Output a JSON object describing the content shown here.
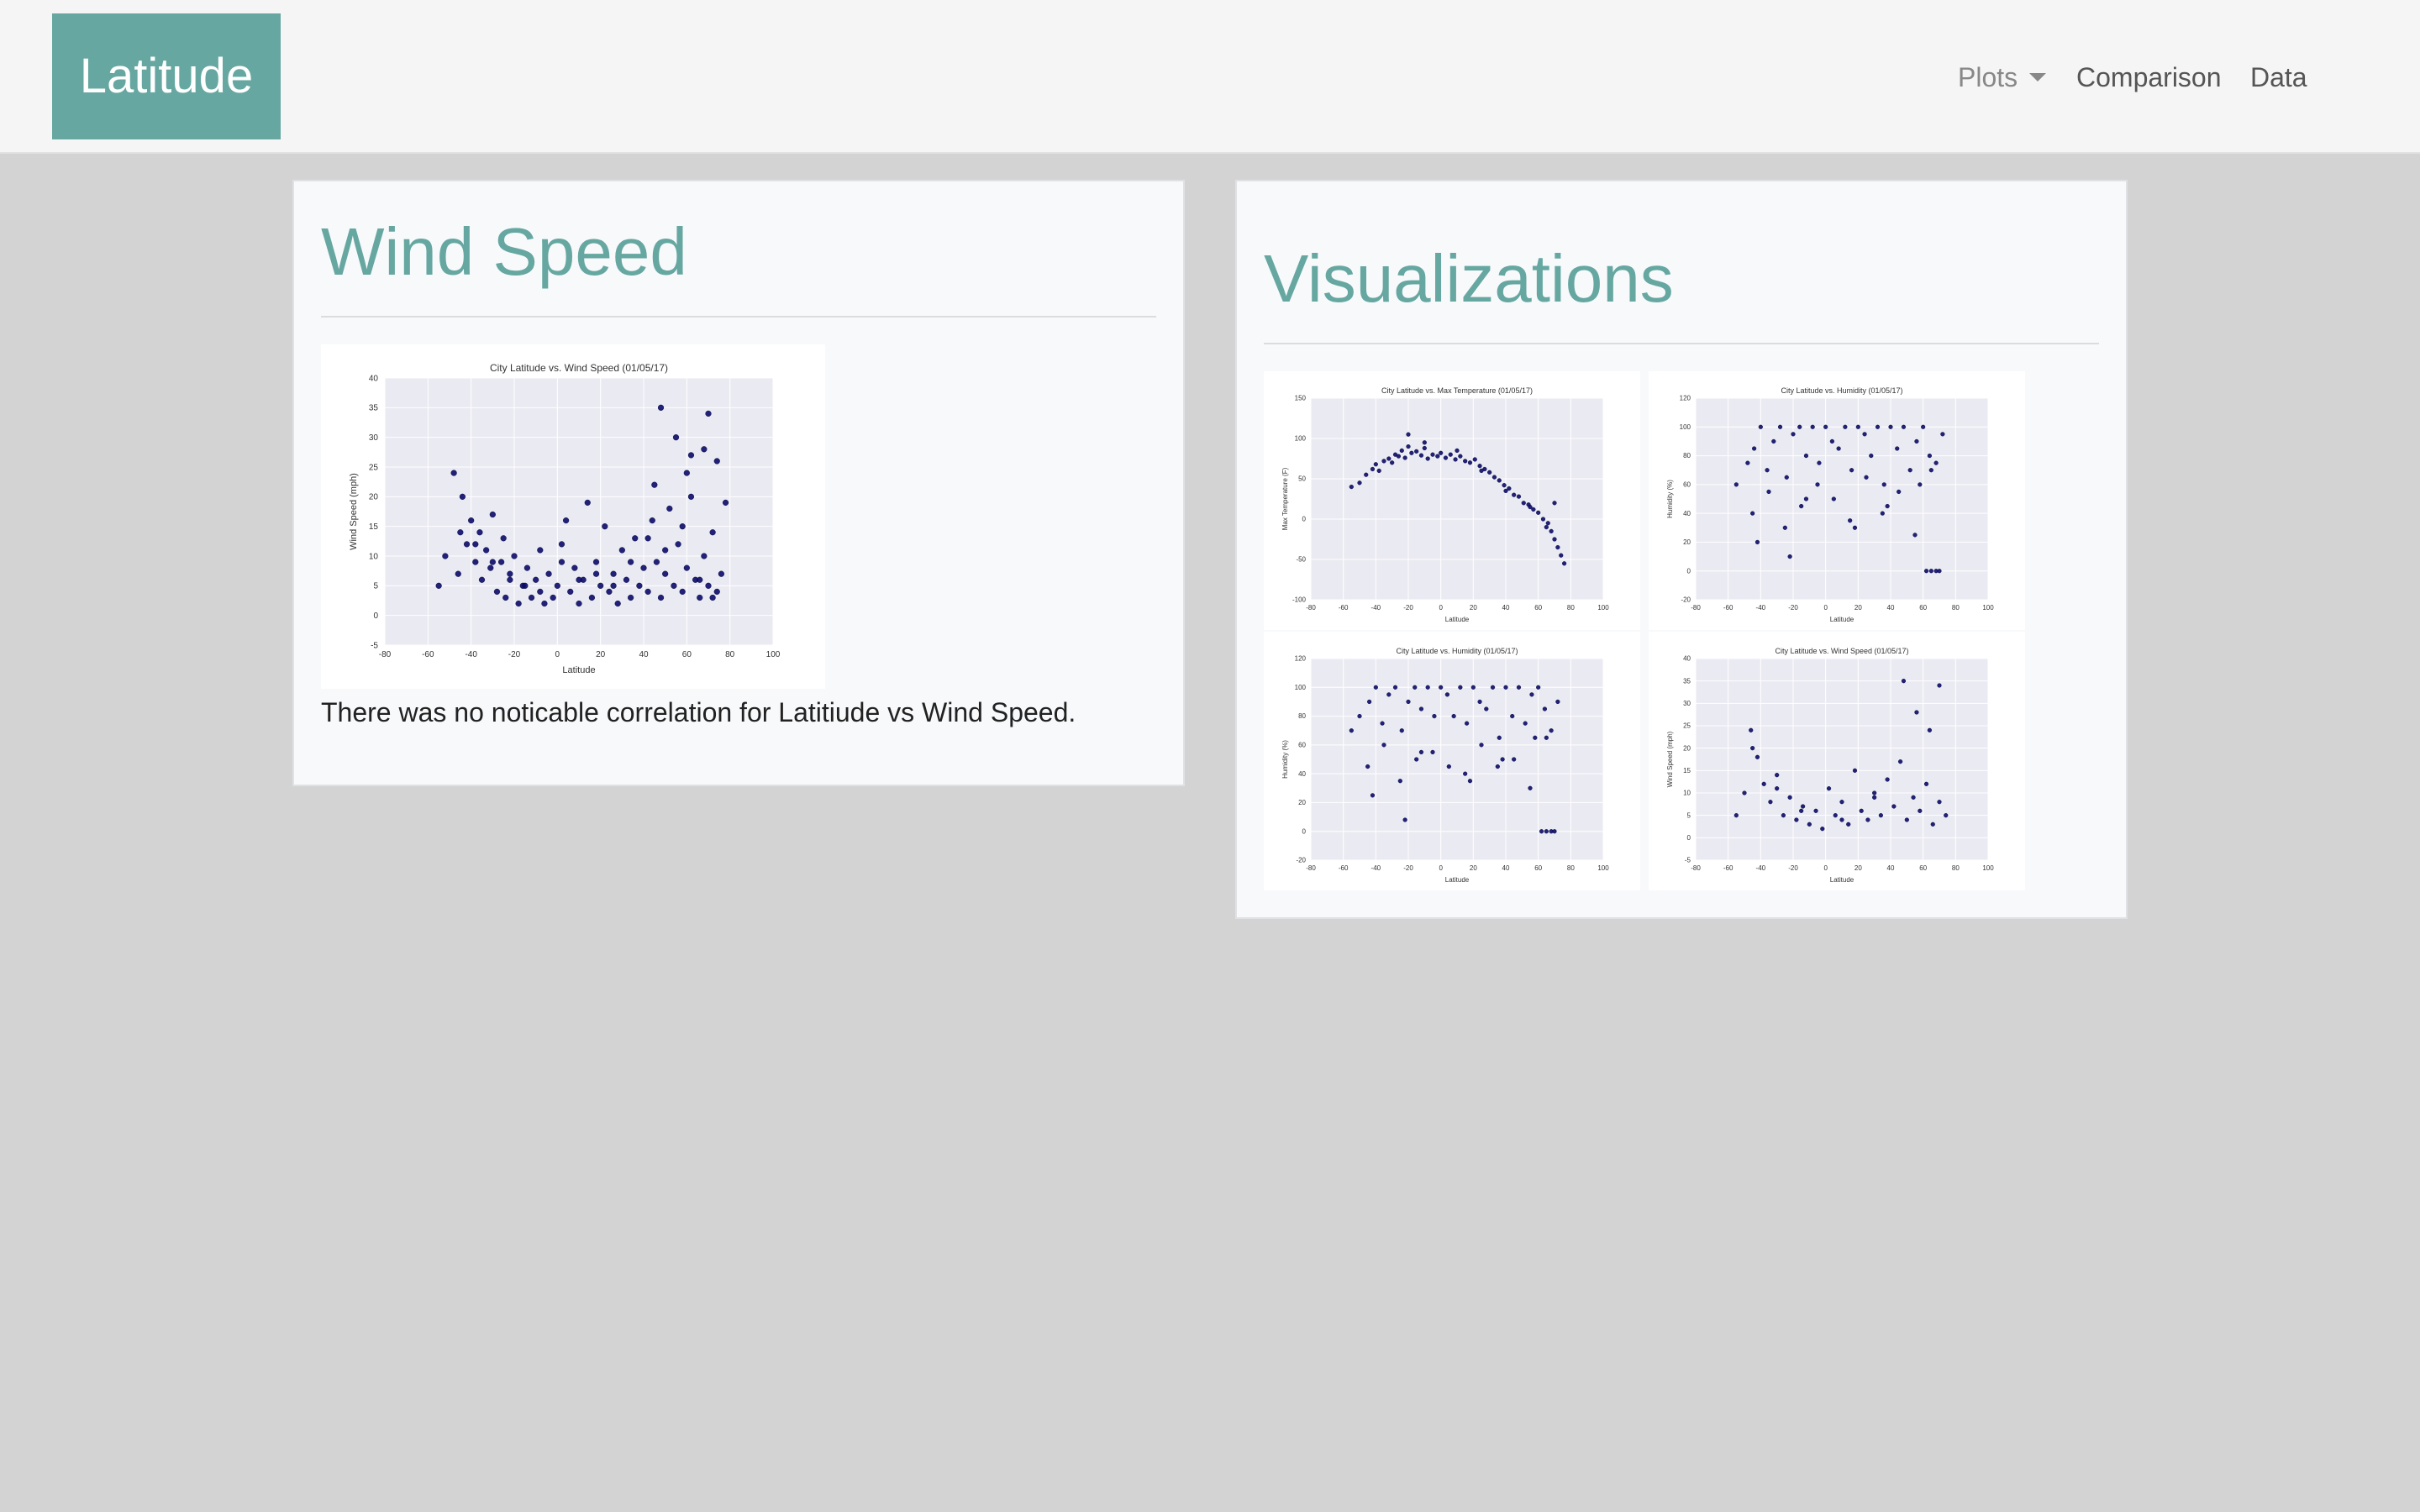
{
  "navbar": {
    "brand": "Latitude",
    "links": {
      "plots": "Plots",
      "comparison": "Comparison",
      "data": "Data"
    }
  },
  "wind_card": {
    "title": "Wind Speed",
    "description": "There was no noticable correlation for Latitiude vs Wind Speed."
  },
  "viz_card": {
    "title": "Visualizations"
  },
  "colors": {
    "accent": "#66a8a1",
    "page_bg": "#d3d3d3",
    "plot_bg": "#eaeaf2",
    "marker": "#0b0b6b"
  },
  "chart_data": [
    {
      "id": "wind-main",
      "type": "scatter",
      "title": "City Latitude vs. Wind Speed (01/05/17)",
      "xlabel": "Latitude",
      "ylabel": "Wind Speed (mph)",
      "xlim": [
        -80,
        100
      ],
      "ylim": [
        -5,
        40
      ],
      "xticks": [
        -80,
        -60,
        -40,
        -20,
        0,
        20,
        40,
        60,
        80,
        100
      ],
      "yticks": [
        -5,
        0,
        5,
        10,
        15,
        20,
        25,
        30,
        35,
        40
      ],
      "x": [
        -55,
        -52,
        -48,
        -46,
        -44,
        -42,
        -40,
        -38,
        -36,
        -35,
        -33,
        -31,
        -30,
        -28,
        -26,
        -25,
        -24,
        -22,
        -20,
        -18,
        -16,
        -14,
        -12,
        -10,
        -8,
        -6,
        -4,
        -2,
        0,
        2,
        4,
        6,
        8,
        10,
        12,
        14,
        16,
        18,
        20,
        22,
        24,
        26,
        28,
        30,
        32,
        34,
        36,
        38,
        40,
        42,
        44,
        46,
        48,
        50,
        52,
        54,
        56,
        58,
        60,
        62,
        64,
        66,
        68,
        70,
        72,
        74,
        76,
        78,
        -45,
        -38,
        -30,
        -22,
        -15,
        -8,
        2,
        10,
        18,
        26,
        34,
        42,
        50,
        58,
        66,
        72,
        48,
        55,
        62,
        70,
        45,
        60,
        68,
        74
      ],
      "y": [
        5,
        10,
        24,
        7,
        20,
        12,
        16,
        9,
        14,
        6,
        11,
        8,
        17,
        4,
        9,
        13,
        3,
        6,
        10,
        2,
        5,
        8,
        3,
        6,
        4,
        2,
        7,
        3,
        5,
        12,
        16,
        4,
        8,
        2,
        6,
        19,
        3,
        9,
        5,
        15,
        4,
        7,
        2,
        11,
        6,
        3,
        13,
        5,
        8,
        4,
        16,
        9,
        3,
        7,
        18,
        5,
        12,
        4,
        8,
        20,
        6,
        3,
        10,
        5,
        14,
        4,
        7,
        19,
        14,
        12,
        9,
        7,
        5,
        11,
        9,
        6,
        7,
        5,
        9,
        13,
        11,
        15,
        6,
        3,
        35,
        30,
        27,
        34,
        22,
        24,
        28,
        26
      ]
    },
    {
      "id": "temp-thumb",
      "type": "scatter",
      "title": "City Latitude vs. Max Temperature (01/05/17)",
      "xlabel": "Latitude",
      "ylabel": "Max Temperature (F)",
      "xlim": [
        -80,
        100
      ],
      "ylim": [
        -100,
        150
      ],
      "xticks": [
        -80,
        -60,
        -40,
        -20,
        0,
        20,
        40,
        60,
        80,
        100
      ],
      "yticks": [
        -100,
        -50,
        0,
        50,
        100,
        150
      ],
      "x": [
        -55,
        -50,
        -46,
        -42,
        -40,
        -38,
        -35,
        -32,
        -30,
        -28,
        -26,
        -24,
        -22,
        -20,
        -18,
        -15,
        -12,
        -10,
        -8,
        -5,
        -2,
        0,
        3,
        6,
        9,
        12,
        15,
        18,
        21,
        24,
        27,
        30,
        33,
        36,
        39,
        42,
        45,
        48,
        51,
        54,
        57,
        60,
        63,
        66,
        68,
        70,
        72,
        74,
        76,
        -20,
        -10,
        10,
        25,
        40,
        55,
        65,
        70
      ],
      "y": [
        40,
        45,
        55,
        62,
        68,
        60,
        72,
        75,
        70,
        80,
        78,
        85,
        76,
        90,
        82,
        84,
        79,
        88,
        75,
        80,
        78,
        82,
        76,
        80,
        74,
        78,
        72,
        70,
        74,
        66,
        62,
        58,
        52,
        48,
        42,
        38,
        30,
        28,
        20,
        18,
        12,
        8,
        0,
        -5,
        -15,
        -25,
        -35,
        -45,
        -55,
        105,
        95,
        85,
        60,
        35,
        15,
        -10,
        20
      ]
    },
    {
      "id": "humidity-thumb-1",
      "type": "scatter",
      "title": "City Latitude vs. Humidity (01/05/17)",
      "xlabel": "Latitude",
      "ylabel": "Humidity (%)",
      "xlim": [
        -80,
        100
      ],
      "ylim": [
        -20,
        120
      ],
      "xticks": [
        -80,
        -60,
        -40,
        -20,
        0,
        20,
        40,
        60,
        80,
        100
      ],
      "yticks": [
        -20,
        0,
        20,
        40,
        60,
        80,
        100,
        120
      ],
      "x": [
        -55,
        -48,
        -44,
        -40,
        -36,
        -32,
        -28,
        -24,
        -20,
        -16,
        -12,
        -8,
        -4,
        0,
        4,
        8,
        12,
        16,
        20,
        24,
        28,
        32,
        36,
        40,
        44,
        48,
        52,
        56,
        60,
        64,
        68,
        72,
        -45,
        -35,
        -25,
        -15,
        -5,
        5,
        15,
        25,
        35,
        45,
        55,
        65,
        -42,
        -22,
        -12,
        18,
        38,
        58,
        62,
        65,
        68,
        70
      ],
      "y": [
        60,
        75,
        85,
        100,
        70,
        90,
        100,
        65,
        95,
        100,
        80,
        100,
        75,
        100,
        90,
        85,
        100,
        70,
        100,
        95,
        80,
        100,
        60,
        100,
        85,
        100,
        70,
        90,
        100,
        80,
        75,
        95,
        40,
        55,
        30,
        45,
        60,
        50,
        35,
        65,
        40,
        55,
        25,
        70,
        20,
        10,
        50,
        30,
        45,
        60,
        0,
        0,
        0,
        0
      ]
    },
    {
      "id": "humidity-thumb-2",
      "type": "scatter",
      "title": "City Latitude vs. Humidity (01/05/17)",
      "xlabel": "Latitude",
      "ylabel": "Humidity (%)",
      "xlim": [
        -80,
        100
      ],
      "ylim": [
        -20,
        120
      ],
      "xticks": [
        -80,
        -60,
        -40,
        -20,
        0,
        20,
        40,
        60,
        80,
        100
      ],
      "yticks": [
        -20,
        0,
        20,
        40,
        60,
        80,
        100,
        120
      ],
      "x": [
        -55,
        -50,
        -44,
        -40,
        -36,
        -32,
        -28,
        -24,
        -20,
        -16,
        -12,
        -8,
        -4,
        0,
        4,
        8,
        12,
        16,
        20,
        24,
        28,
        32,
        36,
        40,
        44,
        48,
        52,
        56,
        60,
        64,
        68,
        72,
        -45,
        -35,
        -25,
        -15,
        -5,
        5,
        15,
        25,
        35,
        45,
        55,
        65,
        -42,
        -22,
        -12,
        18,
        38,
        58,
        62,
        65,
        68,
        70
      ],
      "y": [
        70,
        80,
        90,
        100,
        75,
        95,
        100,
        70,
        90,
        100,
        85,
        100,
        80,
        100,
        95,
        80,
        100,
        75,
        100,
        90,
        85,
        100,
        65,
        100,
        80,
        100,
        75,
        95,
        100,
        85,
        70,
        90,
        45,
        60,
        35,
        50,
        55,
        45,
        40,
        60,
        45,
        50,
        30,
        65,
        25,
        8,
        55,
        35,
        50,
        65,
        0,
        0,
        0,
        0
      ]
    },
    {
      "id": "wind-thumb",
      "type": "scatter",
      "title": "City Latitude vs. Wind Speed (01/05/17)",
      "xlabel": "Latitude",
      "ylabel": "Wind Speed (mph)",
      "xlim": [
        -80,
        100
      ],
      "ylim": [
        -5,
        40
      ],
      "xticks": [
        -80,
        -60,
        -40,
        -20,
        0,
        20,
        40,
        60,
        80,
        100
      ],
      "yticks": [
        -5,
        0,
        5,
        10,
        15,
        20,
        25,
        30,
        35,
        40
      ],
      "x": [
        -55,
        -50,
        -46,
        -42,
        -38,
        -34,
        -30,
        -26,
        -22,
        -18,
        -14,
        -10,
        -6,
        -2,
        2,
        6,
        10,
        14,
        18,
        22,
        26,
        30,
        34,
        38,
        42,
        46,
        50,
        54,
        58,
        62,
        66,
        70,
        74,
        -45,
        -30,
        -15,
        10,
        30,
        48,
        56,
        64,
        70
      ],
      "y": [
        5,
        10,
        24,
        18,
        12,
        8,
        14,
        5,
        9,
        4,
        7,
        3,
        6,
        2,
        11,
        5,
        8,
        3,
        15,
        6,
        4,
        10,
        5,
        13,
        7,
        17,
        4,
        9,
        6,
        12,
        3,
        8,
        5,
        20,
        11,
        6,
        4,
        9,
        35,
        28,
        24,
        34
      ]
    }
  ]
}
